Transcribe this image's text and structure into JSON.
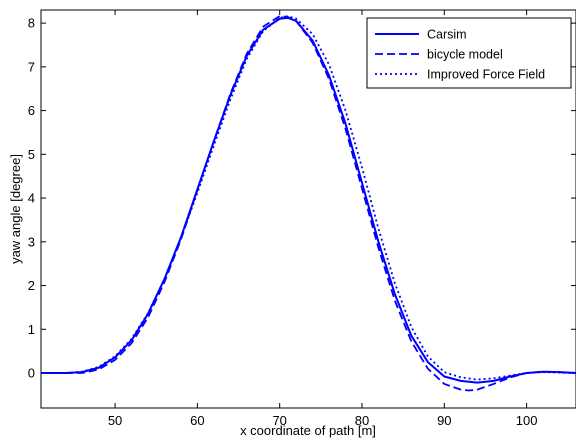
{
  "chart_data": {
    "type": "line",
    "title": "",
    "xlabel": "x coordinate of path [m]",
    "ylabel": "yaw angle [degree]",
    "xlim": [
      41,
      106
    ],
    "ylim": [
      -0.8,
      8.3
    ],
    "xticks": [
      50,
      60,
      70,
      80,
      90,
      100
    ],
    "yticks": [
      0,
      1,
      2,
      3,
      4,
      5,
      6,
      7,
      8
    ],
    "grid": false,
    "legend_position": "top-right",
    "line_color": "#0000ff",
    "series": [
      {
        "name": "Carsim",
        "style": "solid",
        "x": [
          41,
          44,
          46,
          48,
          50,
          52,
          54,
          56,
          58,
          60,
          62,
          64,
          66,
          68,
          70,
          71,
          72,
          74,
          76,
          78,
          80,
          82,
          84,
          86,
          88,
          90,
          92,
          94,
          96,
          98,
          100,
          102,
          104,
          106
        ],
        "y": [
          0.0,
          0.0,
          0.02,
          0.12,
          0.36,
          0.75,
          1.35,
          2.15,
          3.1,
          4.2,
          5.3,
          6.35,
          7.25,
          7.85,
          8.1,
          8.12,
          8.05,
          7.6,
          6.8,
          5.7,
          4.35,
          3.0,
          1.8,
          0.85,
          0.25,
          -0.08,
          -0.18,
          -0.22,
          -0.18,
          -0.08,
          0.0,
          0.03,
          0.02,
          0.0
        ]
      },
      {
        "name": "bicycle model",
        "style": "dashed",
        "x": [
          41,
          44,
          46,
          48,
          50,
          52,
          54,
          56,
          58,
          60,
          62,
          64,
          66,
          68,
          70,
          71,
          72,
          74,
          76,
          78,
          80,
          82,
          84,
          86,
          88,
          90,
          92,
          93,
          94,
          96,
          98,
          100,
          102,
          104,
          106
        ],
        "y": [
          0.0,
          0.0,
          0.0,
          0.08,
          0.3,
          0.68,
          1.27,
          2.08,
          3.05,
          4.18,
          5.3,
          6.38,
          7.3,
          7.92,
          8.16,
          8.14,
          8.05,
          7.55,
          6.72,
          5.58,
          4.22,
          2.86,
          1.65,
          0.72,
          0.1,
          -0.25,
          -0.38,
          -0.4,
          -0.38,
          -0.25,
          -0.1,
          0.0,
          0.03,
          0.02,
          0.0
        ]
      },
      {
        "name": "Improved Force Field",
        "style": "dotted",
        "x": [
          41,
          44,
          46,
          48,
          50,
          52,
          54,
          56,
          58,
          60,
          62,
          64,
          66,
          68,
          70,
          71,
          72,
          74,
          76,
          78,
          80,
          82,
          84,
          86,
          88,
          90,
          92,
          94,
          96,
          98,
          100,
          102,
          104,
          106
        ],
        "y": [
          0.0,
          0.0,
          0.03,
          0.14,
          0.38,
          0.78,
          1.37,
          2.15,
          3.08,
          4.12,
          5.2,
          6.25,
          7.18,
          7.82,
          8.12,
          8.16,
          8.1,
          7.75,
          7.05,
          6.0,
          4.7,
          3.3,
          2.05,
          1.05,
          0.38,
          0.02,
          -0.1,
          -0.15,
          -0.12,
          -0.06,
          0.0,
          0.02,
          0.01,
          0.0
        ]
      }
    ]
  }
}
